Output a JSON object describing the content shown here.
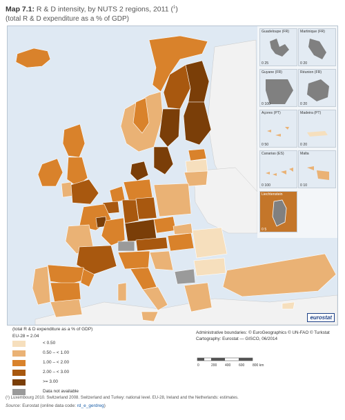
{
  "header": {
    "title_prefix": "Map 7.1:",
    "title_text": " R & D intensity, by NUTS 2 regions, 2011 (",
    "title_note": "1",
    "title_suffix": ")",
    "subtitle": "(total R & D expenditure as a % of GDP)"
  },
  "insets": [
    {
      "label": "Guadeloupe (FR)",
      "scale": "0   25"
    },
    {
      "label": "Martinique (FR)",
      "scale": "0   20"
    },
    {
      "label": "Guyane (FR)",
      "scale": "0   100"
    },
    {
      "label": "Réunion (FR)",
      "scale": "0   20"
    },
    {
      "label": "Açores (PT)",
      "scale": "0   50"
    },
    {
      "label": "Madeira (PT)",
      "scale": "0   20"
    },
    {
      "label": "Canarias (ES)",
      "scale": "0   100"
    },
    {
      "label": "Malta",
      "scale": "0   10"
    },
    {
      "label": "Liechtenstein",
      "scale": "0   5"
    }
  ],
  "logo": "eurostat",
  "legend": {
    "title": "(total R & D expenditure as a % of GDP)",
    "eu_value": "EU-28 = 2.04",
    "items": [
      {
        "label": "< 0.50",
        "color": "#f6dfbd"
      },
      {
        "label": "0.50 – < 1.00",
        "color": "#eab275"
      },
      {
        "label": "1.00 – < 2.00",
        "color": "#d9822b"
      },
      {
        "label": "2.00 – < 3.00",
        "color": "#a8580f"
      },
      {
        "label": ">= 3.00",
        "color": "#7a3e08"
      },
      {
        "label": "Data not available",
        "color": "#9a9a9a"
      }
    ]
  },
  "credits": {
    "line1": "Administrative boundaries: © EuroGeographics © UN-FAO © Turkstat",
    "line2": "Cartography: Eurostat — GISCO, 06/2014"
  },
  "scale": {
    "ticks": [
      "0",
      "200",
      "400",
      "600",
      "800 km"
    ]
  },
  "footnote": "(¹)  Luxembourg 2010. Switzerland 2008. Switzerland and Turkey: national level. EU-28, Ireland and the Netherlands: estimates.",
  "source": {
    "label": "Source:",
    "text": " Eurostat (online data code: ",
    "code": "rd_e_gerdreg",
    "end": ")"
  },
  "colors": {
    "sea": "#dfe9f3",
    "non_eu_land": "#f2f2f2",
    "brand": "#1b3f86"
  }
}
